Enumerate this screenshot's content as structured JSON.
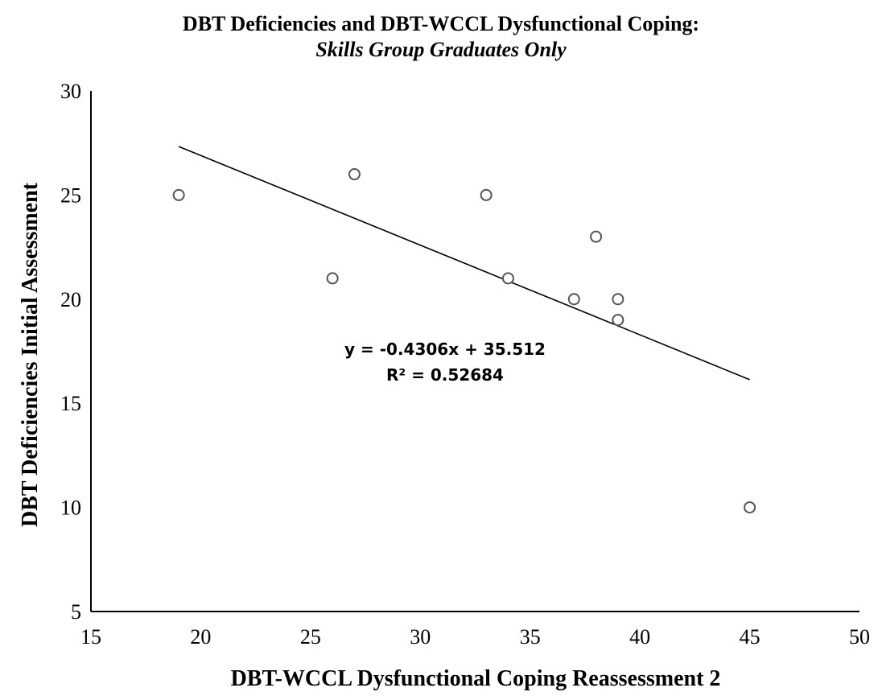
{
  "chart_data": {
    "type": "scatter",
    "title": "DBT Deficiencies and DBT-WCCL Dysfunctional Coping:",
    "subtitle": "Skills Group Graduates Only",
    "xlabel": "DBT-WCCL Dysfunctional Coping Reassessment 2",
    "ylabel": "DBT Deficiencies Initial Assessment",
    "xlim": [
      15,
      50
    ],
    "ylim": [
      5,
      30
    ],
    "x_ticks": [
      15,
      20,
      25,
      30,
      35,
      40,
      45,
      50
    ],
    "y_ticks": [
      5,
      10,
      15,
      20,
      25,
      30
    ],
    "grid": false,
    "points": [
      {
        "x": 19,
        "y": 25
      },
      {
        "x": 26,
        "y": 21
      },
      {
        "x": 27,
        "y": 26
      },
      {
        "x": 33,
        "y": 25
      },
      {
        "x": 34,
        "y": 21
      },
      {
        "x": 37,
        "y": 20
      },
      {
        "x": 38,
        "y": 23
      },
      {
        "x": 39,
        "y": 20
      },
      {
        "x": 39,
        "y": 19
      },
      {
        "x": 45,
        "y": 10
      }
    ],
    "trendline": {
      "type": "linear",
      "slope": -0.4306,
      "intercept": 35.512,
      "x_range": [
        19,
        45
      ],
      "equation_label": "y = -0.4306x + 35.512",
      "r2_label": "R² = 0.52684"
    },
    "colors": {
      "marker_fill": "#ffffff",
      "marker_stroke": "#555555",
      "line": "#000000",
      "axis": "#000000"
    }
  }
}
